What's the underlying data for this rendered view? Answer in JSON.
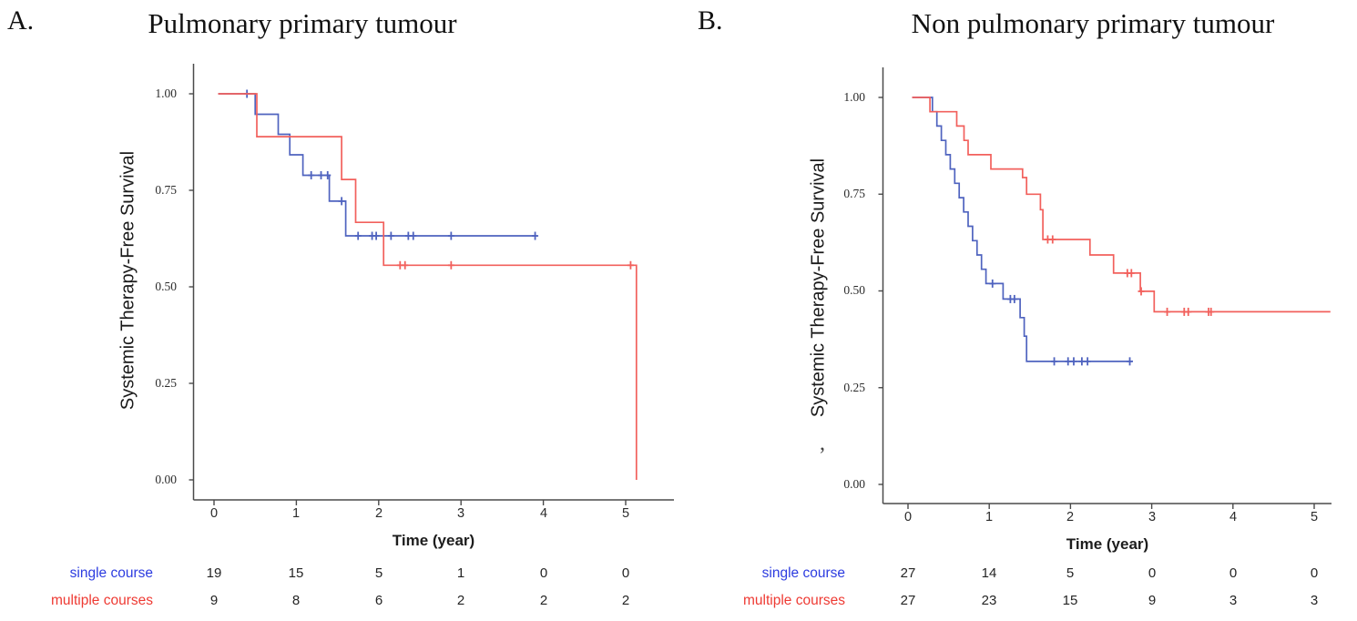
{
  "figure": {
    "panel_letters": [
      "A.",
      "B."
    ],
    "stray_mark": ","
  },
  "colors": {
    "axis": "#4a4a4a",
    "tick": "#4a4a4a",
    "blue_line": "#4f63bf",
    "red_line": "#f2605c",
    "blue_label": "#2c3ce0",
    "red_label": "#ee3a33"
  },
  "chart_data": [
    {
      "type": "line",
      "subtype": "kaplan-meier-step",
      "title": "Pulmonary primary tumour",
      "xlabel": "Time (year)",
      "ylabel": "Systemic Therapy-Free Survival",
      "xlim": [
        0,
        5.5
      ],
      "ylim": [
        0,
        1
      ],
      "x_tick_labels": [
        "0",
        "1",
        "2",
        "3",
        "4",
        "5"
      ],
      "y_tick_labels": [
        "1.00",
        "0.75",
        "0.50",
        "0.25",
        "0.00"
      ],
      "grid": false,
      "legend_position": "risk-table-below",
      "series": [
        {
          "name": "single course",
          "color": "#4f63bf",
          "t_start": 0.05,
          "steps": [
            [
              0.5,
              0.947
            ],
            [
              0.78,
              0.895
            ],
            [
              0.92,
              0.842
            ],
            [
              1.08,
              0.789
            ],
            [
              1.4,
              0.722
            ],
            [
              1.6,
              0.632
            ]
          ],
          "censors": [
            [
              0.4,
              1.0
            ],
            [
              1.18,
              0.789
            ],
            [
              1.3,
              0.789
            ],
            [
              1.38,
              0.789
            ],
            [
              1.55,
              0.722
            ],
            [
              1.75,
              0.632
            ],
            [
              1.92,
              0.632
            ],
            [
              1.97,
              0.632
            ],
            [
              2.15,
              0.632
            ],
            [
              2.36,
              0.632
            ],
            [
              2.42,
              0.632
            ],
            [
              2.88,
              0.632
            ],
            [
              3.9,
              0.632
            ]
          ],
          "t_end": 3.92,
          "drop_to_zero": false
        },
        {
          "name": "multiple courses",
          "color": "#f2605c",
          "t_start": 0.05,
          "steps": [
            [
              0.52,
              0.889
            ],
            [
              1.55,
              0.778
            ],
            [
              1.72,
              0.667
            ],
            [
              2.06,
              0.556
            ]
          ],
          "censors": [
            [
              2.26,
              0.556
            ],
            [
              2.32,
              0.556
            ],
            [
              2.88,
              0.556
            ],
            [
              5.06,
              0.556
            ]
          ],
          "t_end": 5.13,
          "drop_to_zero": true
        }
      ],
      "risk_table": {
        "rows": [
          {
            "label": "single course",
            "color": "#2c3ce0",
            "values": [
              "19",
              "15",
              "5",
              "1",
              "0",
              "0"
            ]
          },
          {
            "label": "multiple courses",
            "color": "#ee3a33",
            "values": [
              "9",
              "8",
              "6",
              "2",
              "2",
              "2"
            ]
          }
        ]
      }
    },
    {
      "type": "line",
      "subtype": "kaplan-meier-step",
      "title": "Non pulmonary primary tumour",
      "xlabel": "Time (year)",
      "ylabel": "Systemic Therapy-Free Survival",
      "xlim": [
        0,
        5.5
      ],
      "ylim": [
        0,
        1
      ],
      "x_tick_labels": [
        "0",
        "1",
        "2",
        "3",
        "4",
        "5"
      ],
      "y_tick_labels": [
        "1.00",
        "0.75",
        "0.50",
        "0.25",
        "0.00"
      ],
      "grid": false,
      "legend_position": "risk-table-below",
      "series": [
        {
          "name": "single course",
          "color": "#4f63bf",
          "t_start": 0.05,
          "steps": [
            [
              0.3,
              0.963
            ],
            [
              0.355,
              0.926
            ],
            [
              0.41,
              0.889
            ],
            [
              0.465,
              0.852
            ],
            [
              0.52,
              0.815
            ],
            [
              0.575,
              0.778
            ],
            [
              0.63,
              0.741
            ],
            [
              0.685,
              0.704
            ],
            [
              0.74,
              0.667
            ],
            [
              0.795,
              0.63
            ],
            [
              0.85,
              0.593
            ],
            [
              0.905,
              0.556
            ],
            [
              0.96,
              0.519
            ],
            [
              1.17,
              0.479
            ],
            [
              1.38,
              0.431
            ],
            [
              1.43,
              0.383
            ],
            [
              1.46,
              0.318
            ]
          ],
          "censors": [
            [
              1.04,
              0.519
            ],
            [
              1.26,
              0.479
            ],
            [
              1.31,
              0.479
            ],
            [
              1.8,
              0.318
            ],
            [
              1.97,
              0.318
            ],
            [
              2.04,
              0.318
            ],
            [
              2.14,
              0.318
            ],
            [
              2.21,
              0.318
            ],
            [
              2.73,
              0.318
            ]
          ],
          "t_end": 2.76,
          "drop_to_zero": false
        },
        {
          "name": "multiple courses",
          "color": "#f2605c",
          "t_start": 0.05,
          "steps": [
            [
              0.27,
              0.963
            ],
            [
              0.6,
              0.926
            ],
            [
              0.69,
              0.889
            ],
            [
              0.74,
              0.852
            ],
            [
              1.02,
              0.815
            ],
            [
              1.41,
              0.793
            ],
            [
              1.46,
              0.75
            ],
            [
              1.63,
              0.71
            ],
            [
              1.66,
              0.633
            ],
            [
              2.24,
              0.593
            ],
            [
              2.53,
              0.546
            ],
            [
              2.86,
              0.499
            ],
            [
              3.03,
              0.446
            ]
          ],
          "censors": [
            [
              1.72,
              0.633
            ],
            [
              1.78,
              0.633
            ],
            [
              2.7,
              0.546
            ],
            [
              2.75,
              0.546
            ],
            [
              2.87,
              0.499
            ],
            [
              3.19,
              0.446
            ],
            [
              3.4,
              0.446
            ],
            [
              3.45,
              0.446
            ],
            [
              3.7,
              0.446
            ],
            [
              3.73,
              0.446
            ]
          ],
          "t_end": 5.2,
          "drop_to_zero": false
        }
      ],
      "risk_table": {
        "rows": [
          {
            "label": "single course",
            "color": "#2c3ce0",
            "values": [
              "27",
              "14",
              "5",
              "0",
              "0",
              "0"
            ]
          },
          {
            "label": "multiple courses",
            "color": "#ee3a33",
            "values": [
              "27",
              "23",
              "15",
              "9",
              "3",
              "3"
            ]
          }
        ]
      }
    }
  ]
}
